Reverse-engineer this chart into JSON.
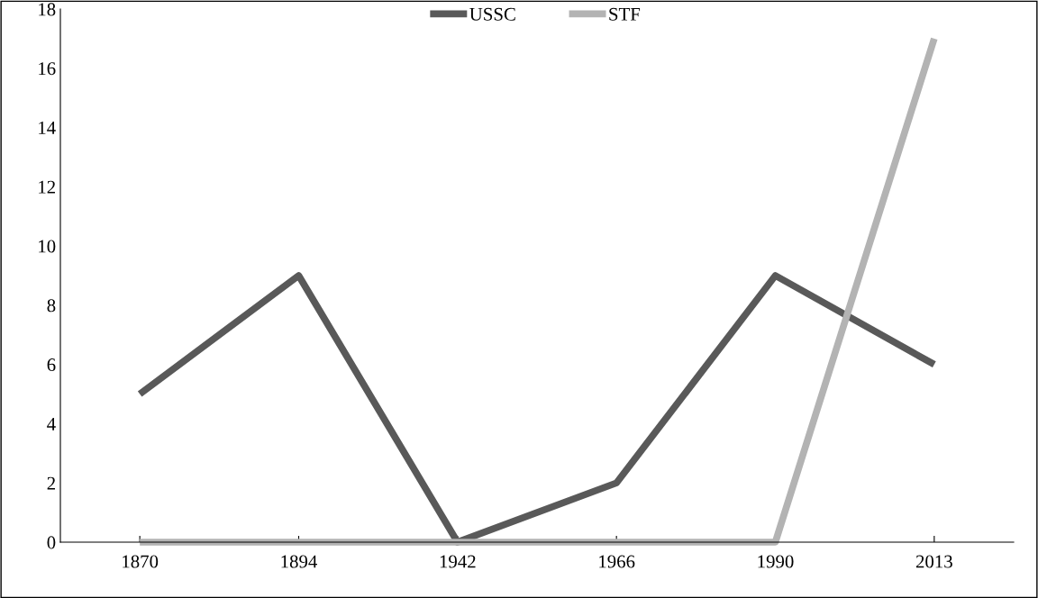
{
  "chart_data": {
    "type": "line",
    "categories": [
      "1870",
      "1894",
      "1942",
      "1966",
      "1990",
      "2013"
    ],
    "series": [
      {
        "name": "USSC",
        "color": "#595959",
        "values": [
          5,
          9,
          0,
          2,
          9,
          6
        ]
      },
      {
        "name": "STF",
        "color": "#b3b3b3",
        "values": [
          0,
          0,
          0,
          0,
          0,
          17
        ]
      }
    ],
    "ylim": [
      0,
      18
    ],
    "yticks": [
      0,
      2,
      4,
      6,
      8,
      10,
      12,
      14,
      16,
      18
    ],
    "grid": false,
    "legend": "top",
    "marker": "none",
    "line_style": "solid"
  }
}
